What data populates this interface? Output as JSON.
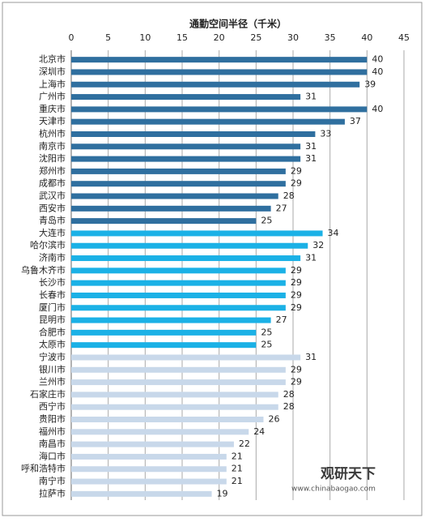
{
  "chart_data": {
    "type": "barh",
    "title": "通勤空间半径（千米）",
    "categories": [
      "北京市",
      "深圳市",
      "上海市",
      "广州市",
      "重庆市",
      "天津市",
      "杭州市",
      "南京市",
      "沈阳市",
      "郑州市",
      "成都市",
      "武汉市",
      "西安市",
      "青岛市",
      "大连市",
      "哈尔滨市",
      "济南市",
      "乌鲁木齐市",
      "长沙市",
      "长春市",
      "厦门市",
      "昆明市",
      "合肥市",
      "太原市",
      "宁波市",
      "银川市",
      "兰州市",
      "石家庄市",
      "西宁市",
      "贵阳市",
      "福州市",
      "南昌市",
      "海口市",
      "呼和浩特市",
      "南宁市",
      "拉萨市"
    ],
    "values": [
      40,
      40,
      39,
      31,
      40,
      37,
      33,
      31,
      31,
      29,
      29,
      28,
      27,
      25,
      34,
      32,
      31,
      29,
      29,
      29,
      29,
      27,
      25,
      25,
      31,
      29,
      29,
      28,
      28,
      26,
      24,
      22,
      21,
      21,
      21,
      19
    ],
    "colors": [
      "#2f6f9f",
      "#2f6f9f",
      "#2f6f9f",
      "#2f6f9f",
      "#2f6f9f",
      "#2f6f9f",
      "#2f6f9f",
      "#2f6f9f",
      "#2f6f9f",
      "#2f6f9f",
      "#2f6f9f",
      "#2f6f9f",
      "#2f6f9f",
      "#2f6f9f",
      "#1bb1e6",
      "#1bb1e6",
      "#1bb1e6",
      "#1bb1e6",
      "#1bb1e6",
      "#1bb1e6",
      "#1bb1e6",
      "#1bb1e6",
      "#1bb1e6",
      "#1bb1e6",
      "#c8d8ea",
      "#c8d8ea",
      "#c8d8ea",
      "#c8d8ea",
      "#c8d8ea",
      "#c8d8ea",
      "#c8d8ea",
      "#c8d8ea",
      "#c8d8ea",
      "#c8d8ea",
      "#c8d8ea",
      "#c8d8ea"
    ],
    "xlim": [
      0,
      45
    ],
    "xticks": [
      0,
      5,
      10,
      15,
      20,
      25,
      30,
      35,
      40,
      45
    ],
    "grid": true,
    "watermark": "观研天下",
    "watermark_url": "www.chinabaogao.com"
  }
}
